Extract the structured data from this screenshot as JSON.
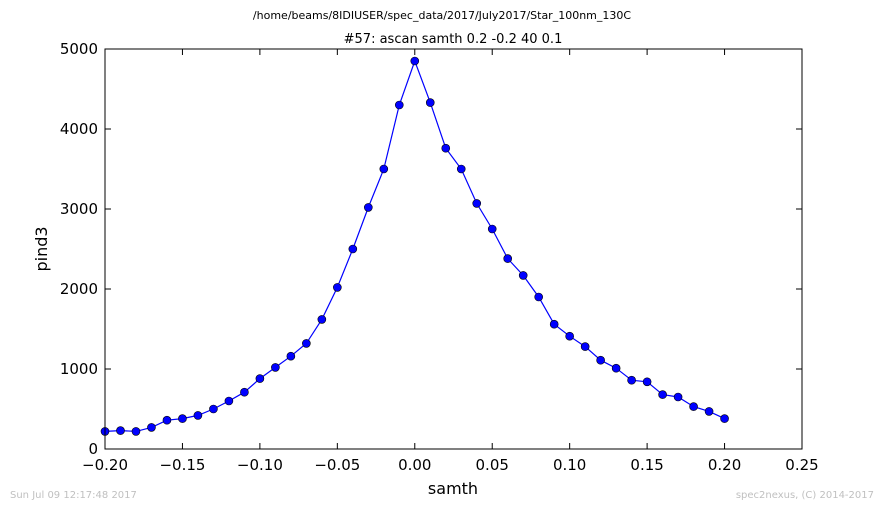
{
  "chart_data": {
    "type": "line",
    "suptitle": "/home/beams/8IDIUSER/spec_data/2017/July2017/Star_100nm_130C",
    "title": "#57: ascan  samth 0.2 -0.2  40 0.1",
    "xlabel": "samth",
    "ylabel": "pind3",
    "xlim": [
      -0.2,
      0.25
    ],
    "ylim": [
      0,
      5000
    ],
    "xticks": [
      -0.2,
      -0.15,
      -0.1,
      -0.05,
      0.0,
      0.05,
      0.1,
      0.15,
      0.2,
      0.25
    ],
    "xtick_labels": [
      "−0.20",
      "−0.15",
      "−0.10",
      "−0.05",
      "0.00",
      "0.05",
      "0.10",
      "0.15",
      "0.20",
      "0.25"
    ],
    "yticks": [
      0,
      1000,
      2000,
      3000,
      4000,
      5000
    ],
    "ytick_labels": [
      "0",
      "1000",
      "2000",
      "3000",
      "4000",
      "5000"
    ],
    "grid": false,
    "series": [
      {
        "color": "#0000ff",
        "marker": "circle",
        "x": [
          -0.2,
          -0.19,
          -0.18,
          -0.17,
          -0.16,
          -0.15,
          -0.14,
          -0.13,
          -0.12,
          -0.11,
          -0.1,
          -0.09,
          -0.08,
          -0.07,
          -0.06,
          -0.05,
          -0.04,
          -0.03,
          -0.02,
          -0.01,
          0.0,
          0.01,
          0.02,
          0.03,
          0.04,
          0.05,
          0.06,
          0.07,
          0.08,
          0.09,
          0.1,
          0.11,
          0.12,
          0.13,
          0.14,
          0.15,
          0.16,
          0.17,
          0.18,
          0.19,
          0.2
        ],
        "y": [
          220,
          230,
          220,
          270,
          360,
          380,
          420,
          500,
          600,
          710,
          880,
          1020,
          1160,
          1320,
          1620,
          2020,
          2500,
          3020,
          3500,
          4300,
          4850,
          4330,
          3760,
          3500,
          3070,
          2750,
          2380,
          2170,
          1900,
          1560,
          1410,
          1280,
          1110,
          1010,
          860,
          840,
          680,
          650,
          530,
          470,
          380
        ]
      }
    ]
  },
  "footer": {
    "timestamp": "Sun Jul 09 12:17:48 2017",
    "credit": "spec2nexus, (C) 2014-2017"
  }
}
